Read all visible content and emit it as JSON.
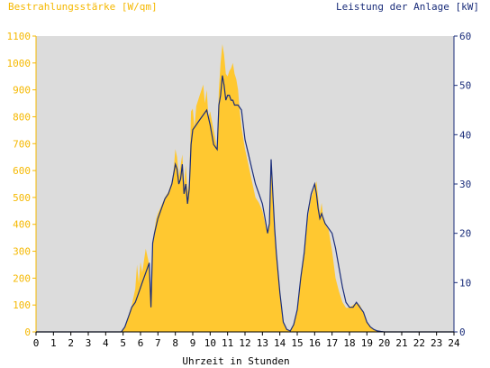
{
  "chart_data": {
    "type": "area",
    "xlabel": "Uhrzeit in Stunden",
    "ylabel_left": "Bestrahlungsstärke [W/qm]",
    "ylabel_right": "Leistung der Anlage [kW]",
    "xlim": [
      0,
      24
    ],
    "ylim_left": [
      0,
      1100
    ],
    "ylim_right": [
      0,
      60
    ],
    "x_ticks": [
      0,
      1,
      2,
      3,
      4,
      5,
      6,
      7,
      8,
      9,
      10,
      11,
      12,
      13,
      14,
      15,
      16,
      17,
      18,
      19,
      20,
      21,
      22,
      23,
      24
    ],
    "left_ticks": [
      0,
      100,
      200,
      300,
      400,
      500,
      600,
      700,
      800,
      900,
      1000,
      1100
    ],
    "right_ticks": [
      0,
      10,
      20,
      30,
      40,
      50,
      60
    ],
    "grid": false,
    "colors": {
      "plot_bg": "#dcdcdc",
      "irradiance": "#ffc830",
      "power": "#1a2d7a",
      "left_axis": "#f5b800",
      "right_axis": "#1a2d7a"
    },
    "series": [
      {
        "name": "Bestrahlungsstärke [W/qm]",
        "axis": "left",
        "kind": "area",
        "x": [
          0,
          4.9,
          5.1,
          5.3,
          5.5,
          5.7,
          5.8,
          5.9,
          6.0,
          6.1,
          6.3,
          6.5,
          6.6,
          6.7,
          6.8,
          6.9,
          7.0,
          7.2,
          7.4,
          7.6,
          7.8,
          7.9,
          8.0,
          8.1,
          8.2,
          8.3,
          8.4,
          8.5,
          8.6,
          8.7,
          8.8,
          8.9,
          9.0,
          9.1,
          9.2,
          9.3,
          9.4,
          9.5,
          9.6,
          9.7,
          9.8,
          9.9,
          10.0,
          10.2,
          10.4,
          10.5,
          10.6,
          10.7,
          10.8,
          10.9,
          11.0,
          11.1,
          11.2,
          11.3,
          11.4,
          11.5,
          11.6,
          11.7,
          11.8,
          12.0,
          12.2,
          12.4,
          12.6,
          12.8,
          13.0,
          13.1,
          13.2,
          13.3,
          13.4,
          13.5,
          13.6,
          13.7,
          13.8,
          14.0,
          14.2,
          14.4,
          14.6,
          14.8,
          15.0,
          15.2,
          15.4,
          15.6,
          15.8,
          16.0,
          16.1,
          16.2,
          16.3,
          16.4,
          16.5,
          16.6,
          16.8,
          17.0,
          17.2,
          17.4,
          17.6,
          17.8,
          18.0,
          18.2,
          18.4,
          18.6,
          18.8,
          19.0,
          19.2,
          19.4,
          19.6,
          19.8,
          20.0,
          20.2,
          20.4,
          24
        ],
        "values": [
          0,
          0,
          20,
          60,
          100,
          160,
          250,
          180,
          260,
          220,
          310,
          250,
          120,
          330,
          380,
          420,
          440,
          470,
          500,
          520,
          560,
          600,
          680,
          650,
          580,
          620,
          660,
          550,
          620,
          520,
          560,
          820,
          830,
          760,
          840,
          860,
          880,
          900,
          920,
          850,
          900,
          800,
          820,
          750,
          680,
          900,
          1000,
          1070,
          1030,
          960,
          950,
          970,
          980,
          1000,
          960,
          940,
          900,
          820,
          760,
          680,
          620,
          560,
          500,
          480,
          450,
          420,
          390,
          370,
          400,
          630,
          520,
          380,
          300,
          150,
          40,
          10,
          5,
          30,
          80,
          200,
          280,
          420,
          500,
          540,
          560,
          500,
          440,
          480,
          420,
          400,
          380,
          300,
          200,
          150,
          110,
          90,
          90,
          100,
          110,
          100,
          70,
          40,
          20,
          10,
          5,
          3,
          0,
          0,
          0,
          0
        ]
      },
      {
        "name": "Leistung der Anlage [kW]",
        "axis": "right",
        "kind": "line",
        "x": [
          0,
          4.9,
          5.1,
          5.3,
          5.5,
          5.7,
          5.9,
          6.1,
          6.3,
          6.5,
          6.6,
          6.7,
          6.8,
          7.0,
          7.2,
          7.4,
          7.6,
          7.8,
          7.9,
          8.0,
          8.1,
          8.2,
          8.3,
          8.4,
          8.5,
          8.6,
          8.7,
          8.8,
          8.9,
          9.0,
          9.2,
          9.4,
          9.6,
          9.8,
          10.0,
          10.2,
          10.4,
          10.5,
          10.6,
          10.7,
          10.8,
          10.9,
          11.0,
          11.1,
          11.2,
          11.3,
          11.4,
          11.6,
          11.8,
          12.0,
          12.2,
          12.4,
          12.6,
          12.8,
          13.0,
          13.1,
          13.2,
          13.3,
          13.4,
          13.5,
          13.6,
          13.7,
          13.8,
          14.0,
          14.2,
          14.4,
          14.6,
          14.8,
          15.0,
          15.2,
          15.4,
          15.6,
          15.8,
          16.0,
          16.1,
          16.2,
          16.3,
          16.4,
          16.5,
          16.6,
          16.8,
          17.0,
          17.2,
          17.4,
          17.6,
          17.8,
          18.0,
          18.2,
          18.4,
          18.6,
          18.8,
          19.0,
          19.2,
          19.4,
          19.6,
          19.8,
          20.0,
          20.2,
          20.4,
          24
        ],
        "values": [
          0,
          0,
          1,
          3,
          5,
          6,
          8,
          10,
          12,
          14,
          5,
          18,
          20,
          23,
          25,
          27,
          28,
          30,
          32,
          34,
          33,
          30,
          31,
          34,
          28,
          30,
          26,
          29,
          38,
          41,
          42,
          43,
          44,
          45,
          42,
          38,
          37,
          46,
          48,
          52,
          50,
          47,
          48,
          48,
          47,
          47,
          46,
          46,
          45,
          39,
          36,
          33,
          30,
          28,
          26,
          24,
          22,
          20,
          22,
          35,
          28,
          21,
          16,
          8,
          2,
          0.5,
          0.2,
          1.5,
          4.5,
          11,
          16,
          24,
          28,
          30,
          28,
          25,
          23,
          24,
          23,
          22,
          21,
          20,
          17,
          13,
          9,
          6,
          5,
          5,
          6,
          5,
          4,
          2,
          1,
          0.5,
          0.2,
          0.1,
          0,
          0,
          0,
          0
        ]
      }
    ]
  }
}
